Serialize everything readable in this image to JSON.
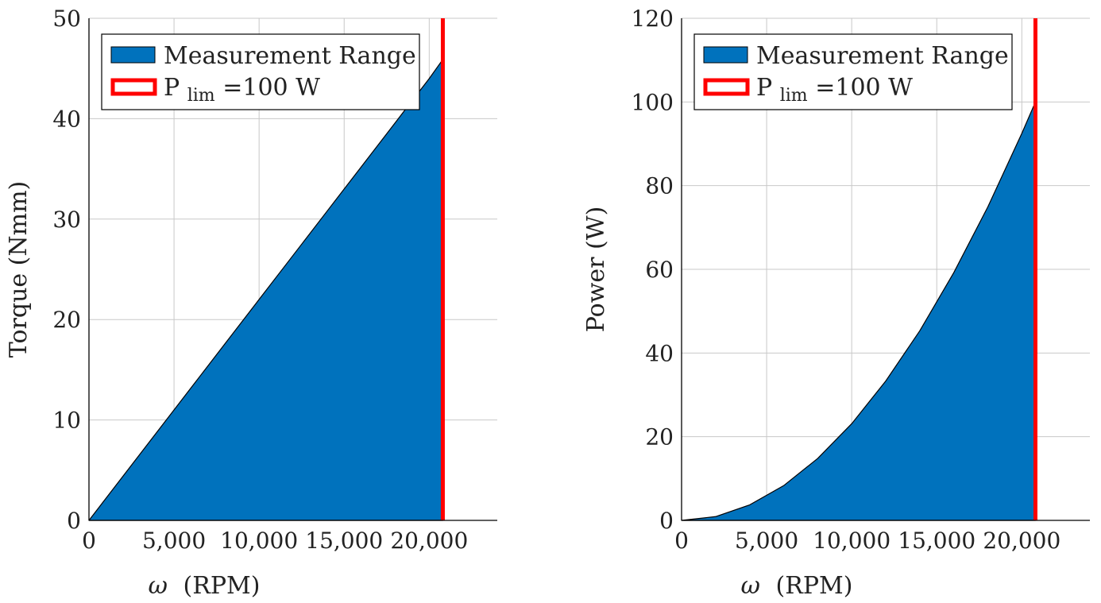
{
  "chart_data": [
    {
      "type": "area",
      "xlabel_symbol": "ω",
      "xlabel_unit": "(RPM)",
      "ylabel": "Torque (Nmm)",
      "xlim": [
        0,
        24000
      ],
      "ylim": [
        0,
        50
      ],
      "x_ticks": [
        0,
        5000,
        10000,
        15000,
        20000
      ],
      "x_tick_labels": [
        "0",
        "5,000",
        "10,000",
        "15,000",
        "20,000"
      ],
      "y_ticks": [
        0,
        10,
        20,
        30,
        40,
        50
      ],
      "y_tick_labels": [
        "0",
        "10",
        "20",
        "30",
        "40",
        "50"
      ],
      "grid": true,
      "legend_position": "top-left",
      "series": [
        {
          "name": "Measurement Range",
          "kind": "filled-area",
          "color": "#0072BD",
          "x": [
            0,
            2000,
            4000,
            6000,
            8000,
            10000,
            12000,
            14000,
            16000,
            18000,
            20000,
            20800
          ],
          "y": [
            0,
            4.4,
            8.8,
            13.2,
            17.6,
            22.0,
            26.4,
            30.8,
            35.2,
            39.6,
            44.0,
            45.9
          ]
        },
        {
          "name_main": "P",
          "name_sub": "lim",
          "name_rest": "=100 W",
          "kind": "vertical-line",
          "color": "#FF0000",
          "x": 20800
        }
      ]
    },
    {
      "type": "area",
      "xlabel_symbol": "ω",
      "xlabel_unit": "(RPM)",
      "ylabel": "Power (W)",
      "xlim": [
        0,
        24000
      ],
      "ylim": [
        0,
        120
      ],
      "x_ticks": [
        0,
        5000,
        10000,
        15000,
        20000
      ],
      "x_tick_labels": [
        "0",
        "5,000",
        "10,000",
        "15,000",
        "20,000"
      ],
      "y_ticks": [
        0,
        20,
        40,
        60,
        80,
        100,
        120
      ],
      "y_tick_labels": [
        "0",
        "20",
        "40",
        "60",
        "80",
        "100",
        "120"
      ],
      "grid": true,
      "legend_position": "top-left",
      "series": [
        {
          "name": "Measurement Range",
          "kind": "filled-area",
          "color": "#0072BD",
          "x": [
            0,
            2000,
            4000,
            6000,
            8000,
            10000,
            12000,
            14000,
            16000,
            18000,
            20000,
            20800
          ],
          "y": [
            0,
            0.9,
            3.7,
            8.3,
            14.8,
            23.1,
            33.3,
            45.3,
            59.2,
            74.9,
            92.5,
            100
          ]
        },
        {
          "name_main": "P",
          "name_sub": "lim",
          "name_rest": "=100 W",
          "kind": "vertical-line",
          "color": "#FF0000",
          "x": 20800
        }
      ]
    }
  ]
}
